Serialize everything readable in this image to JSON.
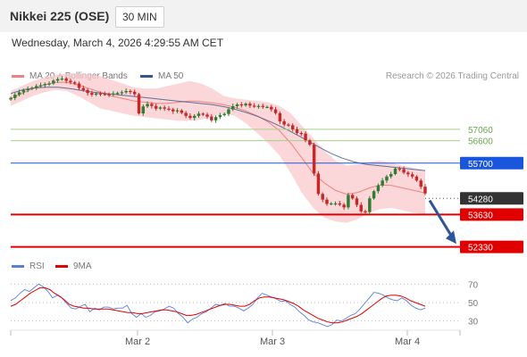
{
  "header": {
    "title": "Nikkei 225 (OSE)",
    "timeframe": "30 MIN",
    "datetime": "Wednesday, March 4, 2026 4:29:55 AM CET"
  },
  "legend": {
    "bollinger": "MA 20 + Bollinger Bands",
    "ma50": "MA 50",
    "credit": "Research © 2026 Trading Central",
    "rsi": "RSI",
    "rsi_ma": "9MA"
  },
  "colors": {
    "candle_up": "#2e7d32",
    "candle_down": "#c62828",
    "bollinger": "#f08080",
    "bollinger_fill": "#f9c9cc",
    "ma50": "#34568b",
    "resistance_green": "#a6d08a",
    "pivot_blue": "#1a56db",
    "support_red": "#e00000",
    "last_price": "#333333",
    "rsi": "#5b7fd8",
    "rsi_ma": "#e00000"
  },
  "chart_data": [
    {
      "type": "candlestick",
      "title": "Nikkei 225 (OSE)",
      "ylim": [
        51850,
        58850
      ],
      "x_tick_labels": [
        "Mar 2",
        "Mar 3",
        "Mar 4"
      ],
      "levels": [
        {
          "value": 57060,
          "label": "57060",
          "style": "green"
        },
        {
          "value": 56600,
          "label": "56600",
          "style": "green"
        },
        {
          "value": 55700,
          "label": "55700",
          "style": "blue-box"
        },
        {
          "value": 54280,
          "label": "54280",
          "style": "last-price"
        },
        {
          "value": 53630,
          "label": "53630",
          "style": "red-box"
        },
        {
          "value": 52330,
          "label": "52330",
          "style": "red-box"
        }
      ],
      "forecast_arrow": {
        "from_value": 54200,
        "to_value": 52450
      },
      "close_series": [
        58320,
        58450,
        58550,
        58630,
        58690,
        58730,
        58800,
        58830,
        58880,
        58900,
        59020,
        59080,
        59100,
        59010,
        58950,
        58900,
        58720,
        58640,
        58520,
        58450,
        58500,
        58480,
        58470,
        58460,
        58500,
        58520,
        58550,
        58600,
        58570,
        58470,
        57700,
        57980,
        58080,
        58000,
        57890,
        57940,
        57890,
        57860,
        57780,
        57820,
        57720,
        57600,
        57520,
        57600,
        57690,
        57650,
        57570,
        57420,
        57550,
        57630,
        57680,
        57860,
        57990,
        58060,
        58020,
        58090,
        58010,
        57990,
        58000,
        57960,
        57960,
        57860,
        57710,
        57380,
        57250,
        57220,
        57060,
        56910,
        56890,
        56620,
        56440,
        55280,
        54460,
        54230,
        54060,
        54080,
        54080,
        54030,
        53920,
        54420,
        54280,
        54020,
        53760,
        53730,
        54280,
        54570,
        54800,
        55000,
        55160,
        55260,
        55480,
        55460,
        55320,
        55250,
        55160,
        55000,
        54750,
        54480
      ],
      "bb_upper": [
        58600,
        58800,
        59000,
        59150,
        59250,
        59300,
        59310,
        59280,
        59200,
        59050,
        58900,
        58750,
        58700,
        58700,
        58800,
        58900,
        59000,
        58900,
        58700,
        58400,
        58300,
        58250,
        58200,
        58150,
        58000,
        57700,
        57200,
        56700,
        56200,
        55800,
        55600,
        55650,
        55750,
        55800,
        55700,
        55600,
        55500,
        55400
      ],
      "bb_lower": [
        58000,
        58200,
        58400,
        58550,
        58650,
        58600,
        58400,
        58150,
        57900,
        57800,
        57700,
        57600,
        57550,
        57500,
        57450,
        57400,
        57400,
        57450,
        57550,
        57700,
        57600,
        57300,
        56900,
        56500,
        56000,
        55300,
        54500,
        53900,
        53500,
        53350,
        53300,
        53450,
        53700,
        53850,
        53900,
        53800,
        53700,
        53650
      ],
      "bb_middle": [
        58300,
        58500,
        58700,
        58850,
        58950,
        58950,
        58850,
        58700,
        58550,
        58400,
        58300,
        58200,
        58150,
        58100,
        58100,
        58150,
        58200,
        58170,
        58120,
        58050,
        57950,
        57800,
        57600,
        57350,
        57000,
        56500,
        55900,
        55300,
        54900,
        54600,
        54450,
        54520,
        54700,
        54820,
        54800,
        54700,
        54600,
        54500
      ],
      "ma50": [
        58500,
        58650,
        58720,
        58750,
        58750,
        58700,
        58620,
        58550,
        58500,
        58450,
        58400,
        58350,
        58300,
        58250,
        58200,
        58150,
        58100,
        58050,
        57970,
        57860,
        57720,
        57550,
        57350,
        57130,
        56880,
        56620,
        56350,
        56100,
        55900,
        55750,
        55650,
        55600,
        55550,
        55500,
        55450,
        55400
      ]
    },
    {
      "type": "line",
      "title": "RSI",
      "ylim": [
        20,
        78
      ],
      "y_tick_labels": [
        "70",
        "50",
        "30"
      ],
      "series": [
        {
          "name": "RSI",
          "values": [
            52,
            55,
            60,
            64,
            62,
            66,
            70,
            67,
            62,
            55,
            58,
            55,
            49,
            44,
            43,
            46,
            48,
            40,
            44,
            42,
            45,
            45,
            43,
            44,
            44,
            47,
            38,
            34,
            38,
            34,
            36,
            40,
            41,
            43,
            46,
            44,
            38,
            34,
            28,
            32,
            34,
            38,
            40,
            44,
            48,
            47,
            49,
            46,
            46,
            44,
            41,
            44,
            48,
            55,
            60,
            58,
            56,
            54,
            51,
            52,
            48,
            45,
            40,
            36,
            31,
            29,
            28,
            26,
            24,
            26,
            31,
            30,
            33,
            36,
            38,
            43,
            49,
            55,
            61,
            60,
            58,
            55,
            53,
            52,
            55,
            52,
            47,
            44,
            42,
            44
          ]
        },
        {
          "name": "9MA",
          "values": [
            46,
            48,
            52,
            56,
            60,
            63,
            66,
            66,
            64,
            60,
            57,
            53,
            48,
            46,
            45,
            44,
            44,
            43,
            43,
            43,
            43,
            42,
            41,
            40,
            39,
            39,
            38,
            38,
            39,
            40,
            41,
            42,
            42,
            41,
            40,
            38,
            36,
            36,
            37,
            39,
            41,
            43,
            45,
            47,
            48,
            48,
            47,
            46,
            46,
            48,
            52,
            55,
            56,
            56,
            55,
            54,
            53,
            51,
            49,
            46,
            42,
            39,
            36,
            33,
            31,
            29,
            28,
            28,
            29,
            31,
            33,
            35,
            38,
            42,
            46,
            50,
            54,
            57,
            58,
            58,
            57,
            55,
            52,
            50,
            48,
            46
          ]
        }
      ]
    }
  ]
}
